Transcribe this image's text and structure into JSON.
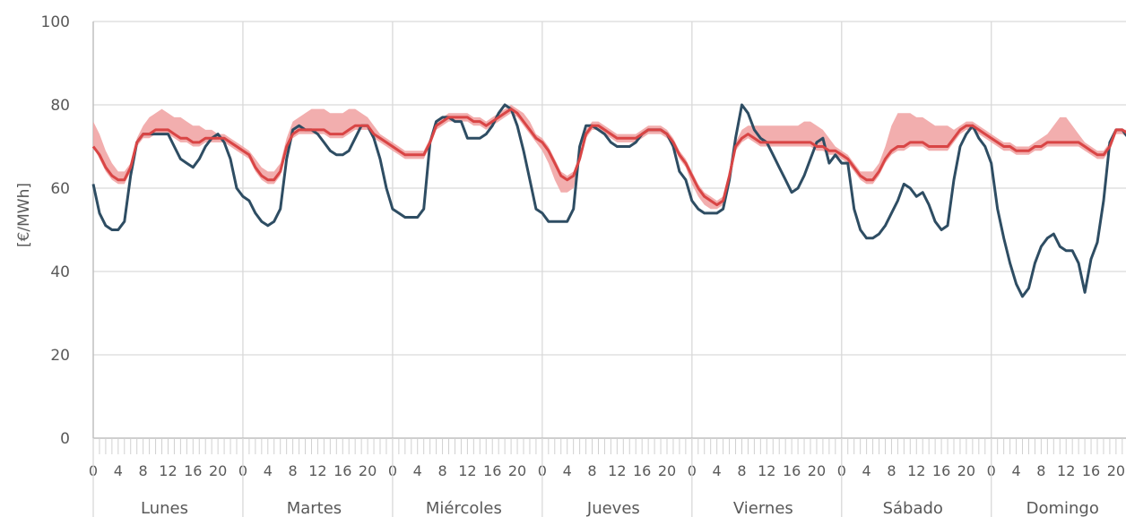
{
  "chart_data": {
    "type": "line",
    "title": "",
    "ylabel": "[€/MWh]",
    "ylim": [
      0,
      100
    ],
    "yticks": [
      "0",
      "20",
      "40",
      "60",
      "80",
      "100"
    ],
    "grid": true,
    "legend": "none",
    "hour_tick_labels": [
      "0",
      "4",
      "8",
      "12",
      "16",
      "20"
    ],
    "days": [
      "Lunes",
      "Martes",
      "Miércoles",
      "Jueves",
      "Viernes",
      "Sábado",
      "Domingo"
    ],
    "colors": {
      "series_a": "#2e4d63",
      "series_b": "#d94545",
      "band": "#f0a0a0",
      "grid": "#d9d9d9",
      "axis": "#bfbfbf"
    },
    "series": [
      {
        "values": [
          61,
          54,
          51,
          50,
          50,
          52,
          63,
          71,
          73,
          73,
          73,
          73,
          73,
          70,
          67,
          66,
          65,
          67,
          70,
          72,
          73,
          71,
          67,
          60,
          58,
          57,
          54,
          52,
          51,
          52,
          55,
          67,
          74,
          75,
          74,
          74,
          73,
          71,
          69,
          68,
          68,
          69,
          72,
          75,
          75,
          72,
          67,
          60,
          55,
          54,
          53,
          53,
          53,
          55,
          71,
          76,
          77,
          77,
          76,
          76,
          72,
          72,
          72,
          73,
          75,
          78,
          80,
          79,
          75,
          69,
          62,
          55,
          54,
          52,
          52,
          52,
          52,
          55,
          70,
          75,
          75,
          74,
          73,
          71,
          70,
          70,
          70,
          71,
          73,
          74,
          74,
          74,
          73,
          70,
          64,
          62,
          57,
          55,
          54,
          54,
          54,
          55,
          62,
          72,
          80,
          78,
          74,
          72,
          71,
          68,
          65,
          62,
          59,
          60,
          63,
          67,
          71,
          72,
          66,
          68,
          66,
          66,
          55,
          50,
          48,
          48,
          49,
          51,
          54,
          57,
          61,
          60,
          58,
          59,
          56,
          52,
          50,
          51,
          62,
          70,
          73,
          75,
          72,
          70,
          66,
          55,
          48,
          42,
          37,
          34,
          36,
          42,
          46,
          48,
          49,
          46,
          45,
          45,
          42,
          35,
          43,
          47,
          57,
          71,
          74,
          74,
          72,
          60
        ]
      },
      {
        "values": [
          70,
          68,
          65,
          63,
          62,
          62,
          65,
          71,
          73,
          73,
          74,
          74,
          74,
          73,
          72,
          72,
          71,
          71,
          72,
          72,
          72,
          72,
          71,
          70,
          69,
          68,
          65,
          63,
          62,
          62,
          64,
          70,
          73,
          74,
          74,
          74,
          74,
          74,
          73,
          73,
          73,
          74,
          75,
          75,
          75,
          73,
          72,
          71,
          70,
          69,
          68,
          68,
          68,
          68,
          71,
          75,
          76,
          77,
          77,
          77,
          77,
          76,
          76,
          75,
          76,
          77,
          78,
          79,
          78,
          76,
          74,
          72,
          71,
          69,
          66,
          63,
          62,
          63,
          67,
          73,
          75,
          75,
          74,
          73,
          72,
          72,
          72,
          72,
          73,
          74,
          74,
          74,
          73,
          71,
          68,
          66,
          63,
          60,
          58,
          57,
          56,
          57,
          63,
          70,
          72,
          73,
          72,
          71,
          71,
          71,
          71,
          71,
          71,
          71,
          71,
          71,
          70,
          70,
          69,
          69,
          68,
          67,
          65,
          63,
          62,
          62,
          64,
          67,
          69,
          70,
          70,
          71,
          71,
          71,
          70,
          70,
          70,
          70,
          72,
          74,
          75,
          75,
          74,
          73,
          72,
          71,
          70,
          70,
          69,
          69,
          69,
          70,
          70,
          71,
          71,
          71,
          71,
          71,
          71,
          70,
          69,
          68,
          68,
          70,
          74,
          74,
          73,
          72
        ]
      }
    ],
    "band": {
      "upper": [
        76,
        73,
        69,
        66,
        64,
        64,
        66,
        72,
        75,
        77,
        78,
        79,
        78,
        77,
        77,
        76,
        75,
        75,
        74,
        74,
        73,
        73,
        72,
        71,
        70,
        69,
        67,
        65,
        64,
        64,
        66,
        72,
        76,
        77,
        78,
        79,
        79,
        79,
        78,
        78,
        78,
        79,
        79,
        78,
        77,
        75,
        73,
        72,
        71,
        70,
        69,
        69,
        69,
        69,
        72,
        76,
        77,
        78,
        78,
        78,
        78,
        77,
        77,
        76,
        77,
        78,
        79,
        80,
        79,
        78,
        76,
        73,
        72,
        70,
        67,
        64,
        63,
        64,
        68,
        74,
        76,
        76,
        75,
        74,
        73,
        73,
        73,
        73,
        74,
        75,
        75,
        75,
        74,
        72,
        69,
        67,
        64,
        61,
        59,
        58,
        57,
        58,
        64,
        71,
        74,
        75,
        75,
        75,
        75,
        75,
        75,
        75,
        75,
        75,
        76,
        76,
        75,
        74,
        72,
        70,
        69,
        68,
        66,
        64,
        64,
        64,
        66,
        70,
        75,
        78,
        78,
        78,
        77,
        77,
        76,
        75,
        75,
        75,
        74,
        75,
        76,
        76,
        75,
        74,
        73,
        72,
        71,
        71,
        70,
        70,
        70,
        71,
        72,
        73,
        75,
        77,
        77,
        75,
        73,
        71,
        70,
        69,
        69,
        71,
        74,
        74,
        74,
        73
      ],
      "lower": [
        70,
        67,
        64,
        62,
        61,
        61,
        64,
        70,
        72,
        72,
        73,
        73,
        73,
        72,
        71,
        71,
        70,
        70,
        71,
        71,
        71,
        71,
        70,
        69,
        68,
        67,
        64,
        62,
        61,
        61,
        63,
        69,
        72,
        73,
        73,
        73,
        73,
        73,
        72,
        72,
        72,
        73,
        74,
        74,
        74,
        72,
        71,
        70,
        69,
        68,
        67,
        67,
        67,
        67,
        70,
        74,
        75,
        76,
        76,
        76,
        76,
        75,
        75,
        74,
        75,
        76,
        77,
        78,
        77,
        75,
        73,
        71,
        69,
        66,
        62,
        59,
        59,
        60,
        66,
        72,
        74,
        74,
        73,
        72,
        71,
        71,
        71,
        71,
        72,
        73,
        73,
        73,
        72,
        70,
        67,
        65,
        61,
        58,
        56,
        55,
        55,
        56,
        62,
        69,
        71,
        72,
        71,
        70,
        70,
        70,
        70,
        70,
        70,
        70,
        70,
        70,
        69,
        69,
        68,
        68,
        67,
        66,
        64,
        62,
        61,
        61,
        63,
        66,
        68,
        69,
        69,
        70,
        70,
        70,
        69,
        69,
        69,
        69,
        71,
        73,
        74,
        74,
        73,
        72,
        71,
        70,
        69,
        69,
        68,
        68,
        68,
        69,
        69,
        70,
        70,
        70,
        70,
        70,
        70,
        69,
        68,
        67,
        67,
        69,
        73,
        73,
        72,
        71
      ]
    }
  }
}
